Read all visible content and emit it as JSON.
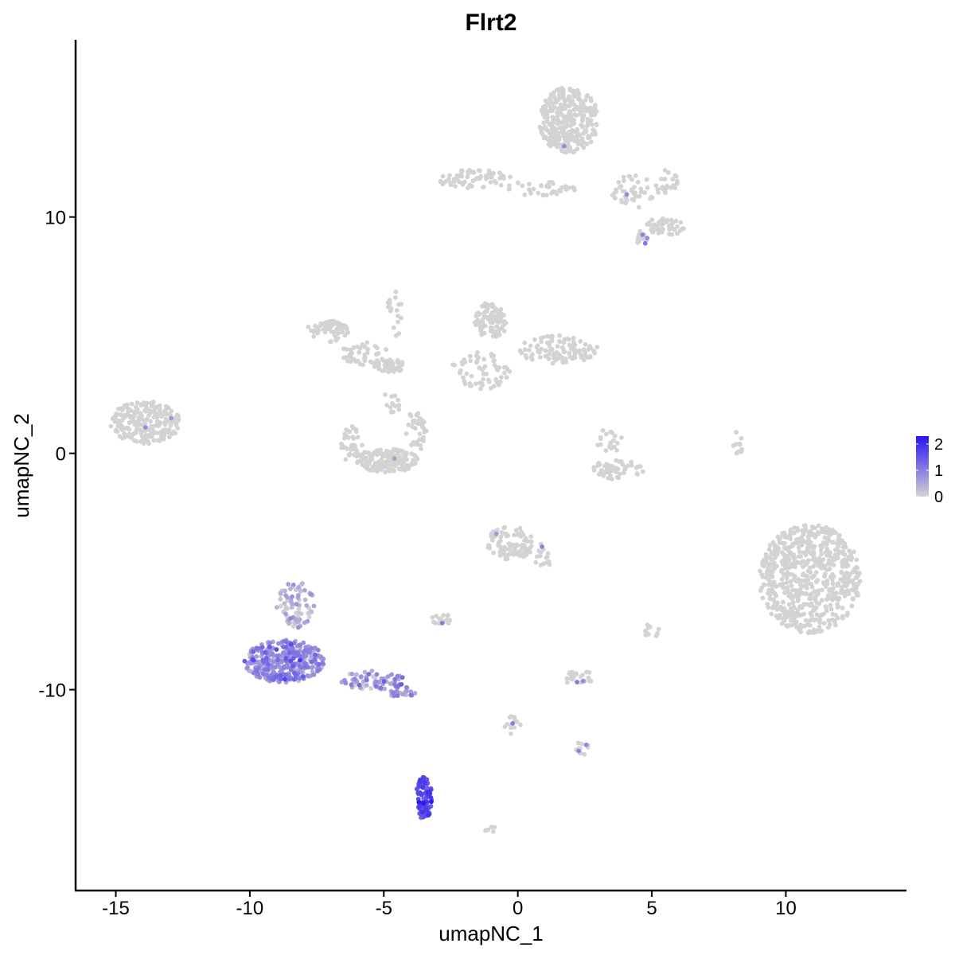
{
  "chart_data": {
    "type": "scatter",
    "title": "Flrt2",
    "xlabel": "umapNC_1",
    "ylabel": "umapNC_2",
    "xlim": [
      -16.5,
      14.5
    ],
    "ylim": [
      -18.5,
      17.5
    ],
    "x_ticks": [
      -15,
      -10,
      -5,
      0,
      5,
      10
    ],
    "y_ticks": [
      -10,
      0,
      10
    ],
    "x_tick_labels": [
      "-15",
      "-10",
      "-5",
      "0",
      "5",
      "10"
    ],
    "y_tick_labels": [
      "-10",
      "0",
      "10"
    ],
    "grid": false,
    "legend": {
      "placement": "right",
      "min": 0,
      "max": 2.3,
      "ticks": [
        0,
        1,
        2
      ],
      "tick_labels": [
        "0",
        "1",
        "2"
      ],
      "low_color": "#d3d3d3",
      "high_color": "#2b14f2"
    },
    "clusters": [
      {
        "cx": -13.9,
        "cy": 1.3,
        "rx": 1.3,
        "ry": 0.9,
        "n": 220,
        "expr": 0.0,
        "hi": 2
      },
      {
        "cx": 10.9,
        "cy": -5.3,
        "rx": 1.9,
        "ry": 2.3,
        "n": 650,
        "expr": 0.0,
        "hi": 0
      },
      {
        "cx": 1.9,
        "cy": 14.1,
        "rx": 1.1,
        "ry": 1.4,
        "n": 320,
        "expr": 0.0,
        "hi": 1
      },
      {
        "cx": -1.6,
        "cy": 11.6,
        "rx": 1.4,
        "ry": 0.4,
        "n": 70,
        "expr": 0.0,
        "hi": 0
      },
      {
        "cx": 0.8,
        "cy": 11.2,
        "rx": 1.4,
        "ry": 0.3,
        "n": 35,
        "expr": 0.0,
        "hi": 0
      },
      {
        "cx": 4.4,
        "cy": 11.1,
        "rx": 0.9,
        "ry": 0.7,
        "n": 45,
        "expr": 0.0,
        "hi": 1
      },
      {
        "cx": 5.6,
        "cy": 11.5,
        "rx": 0.4,
        "ry": 0.5,
        "n": 20,
        "expr": 0.0,
        "hi": 0
      },
      {
        "cx": 5.5,
        "cy": 9.6,
        "rx": 0.7,
        "ry": 0.4,
        "n": 45,
        "expr": 0.0,
        "hi": 0
      },
      {
        "cx": 4.6,
        "cy": 9.1,
        "rx": 0.3,
        "ry": 0.3,
        "n": 15,
        "expr": 0.0,
        "hi": 3
      },
      {
        "cx": -7.1,
        "cy": 5.2,
        "rx": 0.8,
        "ry": 0.5,
        "n": 60,
        "expr": 0.0,
        "hi": 0
      },
      {
        "cx": -5.7,
        "cy": 4.2,
        "rx": 0.9,
        "ry": 0.5,
        "n": 45,
        "expr": 0.0,
        "hi": 0
      },
      {
        "cx": -4.8,
        "cy": 3.7,
        "rx": 0.6,
        "ry": 0.3,
        "n": 40,
        "expr": 0.0,
        "hi": 0
      },
      {
        "cx": -4.6,
        "cy": 6.0,
        "rx": 0.3,
        "ry": 1.3,
        "n": 18,
        "expr": 0.0,
        "hi": 0
      },
      {
        "cx": -1.0,
        "cy": 5.6,
        "rx": 0.6,
        "ry": 0.8,
        "n": 100,
        "expr": 0.0,
        "hi": 0
      },
      {
        "cx": 1.5,
        "cy": 4.4,
        "rx": 1.5,
        "ry": 0.6,
        "n": 110,
        "expr": 0.0,
        "hi": 0
      },
      {
        "cx": -1.4,
        "cy": 3.5,
        "rx": 1.1,
        "ry": 0.8,
        "n": 60,
        "expr": 0.0,
        "hi": 0
      },
      {
        "cx": -4.9,
        "cy": -0.3,
        "rx": 1.2,
        "ry": 0.5,
        "n": 160,
        "expr": 0.0,
        "hi": 1
      },
      {
        "cx": -6.2,
        "cy": 0.4,
        "rx": 0.4,
        "ry": 0.8,
        "n": 40,
        "expr": 0.0,
        "hi": 0
      },
      {
        "cx": -3.8,
        "cy": 0.9,
        "rx": 0.4,
        "ry": 0.9,
        "n": 40,
        "expr": 0.0,
        "hi": 0
      },
      {
        "cx": -4.6,
        "cy": 2.3,
        "rx": 0.4,
        "ry": 0.6,
        "n": 12,
        "expr": 0.0,
        "hi": 0
      },
      {
        "cx": 3.7,
        "cy": -0.7,
        "rx": 1.0,
        "ry": 0.4,
        "n": 60,
        "expr": 0.0,
        "hi": 0
      },
      {
        "cx": 3.4,
        "cy": 0.5,
        "rx": 0.5,
        "ry": 0.6,
        "n": 20,
        "expr": 0.0,
        "hi": 0
      },
      {
        "cx": 8.2,
        "cy": 0.4,
        "rx": 0.2,
        "ry": 0.6,
        "n": 10,
        "expr": 0.0,
        "hi": 0
      },
      {
        "cx": -0.3,
        "cy": -3.8,
        "rx": 0.9,
        "ry": 0.7,
        "n": 90,
        "expr": 0.0,
        "hi": 1
      },
      {
        "cx": 0.9,
        "cy": -4.5,
        "rx": 0.3,
        "ry": 0.7,
        "n": 15,
        "expr": 0.0,
        "hi": 1
      },
      {
        "cx": -2.8,
        "cy": -7.0,
        "rx": 0.4,
        "ry": 0.3,
        "n": 15,
        "expr": 0.0,
        "hi": 1
      },
      {
        "cx": 2.3,
        "cy": -9.5,
        "rx": 0.6,
        "ry": 0.3,
        "n": 25,
        "expr": 0.0,
        "hi": 2
      },
      {
        "cx": 5.0,
        "cy": -7.5,
        "rx": 0.3,
        "ry": 0.3,
        "n": 10,
        "expr": 0.0,
        "hi": 0
      },
      {
        "cx": 2.4,
        "cy": -12.5,
        "rx": 0.3,
        "ry": 0.3,
        "n": 10,
        "expr": 0.0,
        "hi": 2
      },
      {
        "cx": -0.2,
        "cy": -11.5,
        "rx": 0.3,
        "ry": 0.4,
        "n": 12,
        "expr": 0.0,
        "hi": 1
      },
      {
        "cx": -1.0,
        "cy": -16.0,
        "rx": 0.3,
        "ry": 0.2,
        "n": 5,
        "expr": 0.0,
        "hi": 0
      },
      {
        "cx": -8.7,
        "cy": -8.8,
        "rx": 1.5,
        "ry": 0.9,
        "n": 340,
        "expr": 0.8,
        "hi": 6
      },
      {
        "cx": -8.3,
        "cy": -6.4,
        "rx": 0.7,
        "ry": 1.0,
        "n": 80,
        "expr": 0.25,
        "hi": 1
      },
      {
        "cx": -5.4,
        "cy": -9.6,
        "rx": 1.2,
        "ry": 0.4,
        "n": 70,
        "expr": 0.55,
        "hi": 2
      },
      {
        "cx": -4.3,
        "cy": -10.1,
        "rx": 0.5,
        "ry": 0.3,
        "n": 25,
        "expr": 0.6,
        "hi": 1
      },
      {
        "cx": -3.5,
        "cy": -14.6,
        "rx": 0.3,
        "ry": 0.9,
        "n": 90,
        "expr": 1.6,
        "hi": 1
      }
    ]
  }
}
